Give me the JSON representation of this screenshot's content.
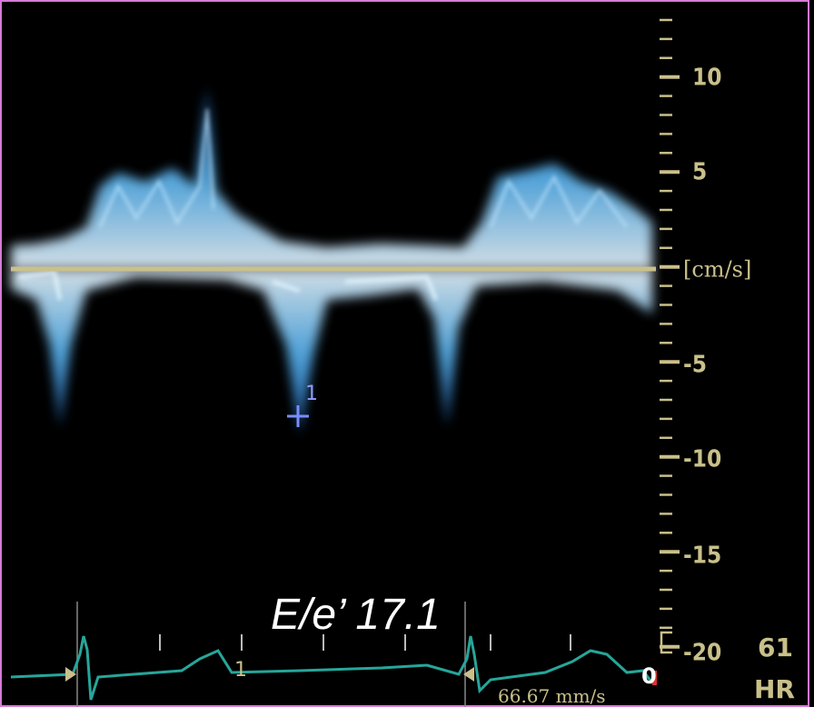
{
  "scale": {
    "labels": [
      "10",
      "5",
      "[cm/s]",
      "-5",
      "-10",
      "-15",
      "-20"
    ]
  },
  "measurement": "E/e’ 17.1",
  "marker": "1",
  "ecg": {
    "marker": "1",
    "sweep_speed": "66.67 mm/s",
    "end_label": "0"
  },
  "heart_rate": {
    "value": "61",
    "label": "HR"
  }
}
